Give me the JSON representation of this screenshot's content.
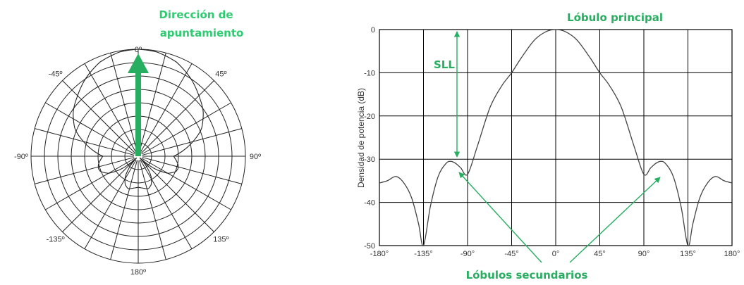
{
  "polar": {
    "angle_labels": [
      {
        "text": "0º",
        "angle": 0
      },
      {
        "text": "45º",
        "angle": 45
      },
      {
        "text": "90º",
        "angle": 90
      },
      {
        "text": "135º",
        "angle": 135
      },
      {
        "text": "180º",
        "angle": 180
      },
      {
        "text": "-135º",
        "angle": -135
      },
      {
        "text": "-90º",
        "angle": -90
      },
      {
        "text": "-45º",
        "angle": -45
      }
    ],
    "pointing_label_line1": "Dirección de",
    "pointing_label_line2": "apuntamiento"
  },
  "annotations": {
    "main_lobe": "Lóbulo principal",
    "sll": "SLL",
    "side_lobes": "Lóbulos secundarios",
    "accent_color": "#27ae60"
  },
  "chart_data": {
    "type": "line",
    "title": "",
    "xlabel": "",
    "ylabel": "Densidad de potencia (dB)",
    "xlim": [
      -180,
      180
    ],
    "ylim": [
      -50,
      0
    ],
    "grid": true,
    "x_ticks": [
      -180,
      -135,
      -90,
      -45,
      0,
      45,
      90,
      135,
      180
    ],
    "x_tick_labels": [
      "-180°",
      "-135°",
      "-90°",
      "-45°",
      "0°",
      "45°",
      "90°",
      "135°",
      "180°"
    ],
    "y_ticks": [
      0,
      -10,
      -20,
      -30,
      -40,
      -50
    ],
    "y_tick_labels": [
      "0",
      "-10",
      "-20",
      "-30",
      "-40",
      "-50"
    ],
    "series": [
      {
        "x": [
          -180,
          -172,
          -163,
          -155,
          -147,
          -140,
          -135,
          -128,
          -120,
          -112,
          -107,
          -102,
          -97,
          -90,
          -80,
          -67,
          -55,
          -45,
          -35,
          -22,
          -10,
          0,
          10,
          22,
          35,
          45,
          55,
          67,
          80,
          90,
          97,
          102,
          107,
          112,
          120,
          128,
          135,
          140,
          147,
          155,
          163,
          172,
          180
        ],
        "y": [
          -35.5,
          -35,
          -34,
          -35.5,
          -39,
          -45,
          -50,
          -41,
          -34,
          -31,
          -30.5,
          -31,
          -32,
          -33.5,
          -27,
          -18,
          -13,
          -10,
          -6.5,
          -2.5,
          -0.5,
          0,
          -0.5,
          -2.5,
          -6.5,
          -10,
          -13,
          -18,
          -27,
          -33.5,
          -32,
          -31,
          -30.5,
          -31,
          -34,
          -41,
          -50,
          -45,
          -39,
          -35.5,
          -34,
          -35,
          -35.5
        ]
      }
    ]
  }
}
